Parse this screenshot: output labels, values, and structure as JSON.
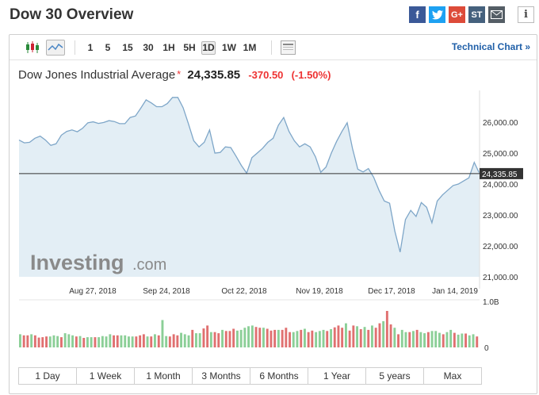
{
  "page": {
    "title": "Dow 30 Overview"
  },
  "share": {
    "facebook": "f",
    "twitter": "t",
    "google": "G+",
    "stocktwits": "ST",
    "email": "email-icon",
    "info": "i"
  },
  "toolbar": {
    "timeframes": [
      "1",
      "5",
      "15",
      "30",
      "1H",
      "5H",
      "1D",
      "1W",
      "1M"
    ],
    "active_timeframe": "1D",
    "technical_link": "Technical Chart »"
  },
  "quote": {
    "name": "Dow Jones Industrial Average",
    "price": "24,335.85",
    "change": "-370.50",
    "change_pct": "(-1.50%)",
    "change_color": "#e33b3b"
  },
  "watermark": {
    "brand": "Investing",
    "suffix": ".com"
  },
  "colors": {
    "line": "#7ea6c8",
    "area": "#e3eef5",
    "up_volume": "#8bcf97",
    "down_volume": "#e07070",
    "price_tag": "#333333"
  },
  "chart_data": {
    "type": "area",
    "title": "Dow Jones Industrial Average",
    "x_ticks": [
      "Aug 27, 2018",
      "Sep 24, 2018",
      "Oct 22, 2018",
      "Nov 19, 2018",
      "Dec 17, 2018",
      "Jan 14, 2019"
    ],
    "y_ticks": [
      "26,000.00",
      "25,000.00",
      "24,000.00",
      "23,000.00",
      "22,000.00",
      "21,000.00"
    ],
    "y_tick_values": [
      26000,
      25000,
      24000,
      23000,
      22000,
      21000
    ],
    "ylim": [
      21000,
      27000
    ],
    "current_value": 24335.85,
    "current_label": "24,335.85",
    "grid": false,
    "series": [
      {
        "values": [
          25420,
          25330,
          25350,
          25480,
          25550,
          25420,
          25250,
          25300,
          25580,
          25700,
          25750,
          25690,
          25800,
          25980,
          26010,
          25960,
          25990,
          26050,
          26020,
          25950,
          25950,
          26150,
          26200,
          26450,
          26720,
          26620,
          26500,
          26500,
          26600,
          26800,
          26800,
          26470,
          25950,
          25400,
          25200,
          25350,
          25750,
          25000,
          25020,
          25200,
          25180,
          24900,
          24600,
          24350,
          24850,
          25000,
          25150,
          25350,
          25480,
          25900,
          26150,
          25700,
          25400,
          25200,
          25300,
          25200,
          24880,
          24380,
          24550,
          25000,
          25380,
          25700,
          25980,
          25150,
          24480,
          24390,
          24500,
          24220,
          23800,
          23450,
          23380,
          22480,
          21800,
          22850,
          23150,
          22950,
          23400,
          23250,
          22750,
          23450,
          23650,
          23800,
          23950,
          24000,
          24100,
          24200,
          24700,
          24335.85
        ]
      }
    ],
    "volume_axis": [
      "1.0B",
      "0"
    ],
    "volume_values": [
      0.36,
      0.33,
      0.33,
      0.36,
      0.33,
      0.27,
      0.28,
      0.3,
      0.3,
      0.33,
      0.31,
      0.28,
      0.39,
      0.36,
      0.33,
      0.3,
      0.31,
      0.26,
      0.28,
      0.28,
      0.28,
      0.28,
      0.31,
      0.3,
      0.36,
      0.33,
      0.33,
      0.33,
      0.33,
      0.3,
      0.3,
      0.3,
      0.33,
      0.36,
      0.3,
      0.3,
      0.36,
      0.33,
      0.75,
      0.31,
      0.3,
      0.36,
      0.33,
      0.4,
      0.36,
      0.33,
      0.48,
      0.39,
      0.39,
      0.52,
      0.6,
      0.42,
      0.42,
      0.39,
      0.48,
      0.45,
      0.45,
      0.51,
      0.46,
      0.48,
      0.54,
      0.58,
      0.6,
      0.56,
      0.54,
      0.54,
      0.51,
      0.46,
      0.48,
      0.48,
      0.48,
      0.54,
      0.42,
      0.42,
      0.45,
      0.48,
      0.51,
      0.42,
      0.46,
      0.42,
      0.45,
      0.48,
      0.45,
      0.5,
      0.55,
      0.6,
      0.54,
      0.66,
      0.46,
      0.6,
      0.58,
      0.5,
      0.56,
      0.48,
      0.6,
      0.54,
      0.66,
      0.72,
      1.0,
      0.63,
      0.54,
      0.36,
      0.48,
      0.42,
      0.42,
      0.45,
      0.48,
      0.42,
      0.39,
      0.42,
      0.45,
      0.45,
      0.4,
      0.36,
      0.42,
      0.48,
      0.4,
      0.35,
      0.38,
      0.38,
      0.33,
      0.36,
      0.3
    ],
    "volume_up": [
      1,
      0,
      0,
      1,
      0,
      0,
      0,
      0,
      1,
      1,
      1,
      0,
      1,
      1,
      1,
      0,
      1,
      0,
      1,
      1,
      0,
      1,
      1,
      1,
      1,
      0,
      0,
      1,
      1,
      1,
      1,
      0,
      0,
      0,
      1,
      0,
      1,
      0,
      1,
      1,
      0,
      0,
      0,
      1,
      1,
      1,
      0,
      1,
      1,
      0,
      0,
      1,
      0,
      0,
      1,
      0,
      0,
      0,
      1,
      1,
      1,
      1,
      1,
      0,
      0,
      1,
      0,
      0,
      0,
      1,
      0,
      0,
      0,
      1,
      1,
      0,
      1,
      0,
      0,
      1,
      1,
      1,
      0,
      1,
      0,
      0,
      0,
      1,
      0,
      0,
      1,
      0,
      1,
      0,
      1,
      0,
      0,
      1,
      0,
      0,
      1,
      0,
      1,
      1,
      0,
      1,
      0,
      1,
      1,
      0,
      1,
      1,
      1,
      0,
      1,
      1,
      0,
      1,
      1,
      0,
      1,
      1,
      0
    ]
  },
  "ranges": [
    "1 Day",
    "1 Week",
    "1 Month",
    "3 Months",
    "6 Months",
    "1 Year",
    "5 years",
    "Max"
  ]
}
